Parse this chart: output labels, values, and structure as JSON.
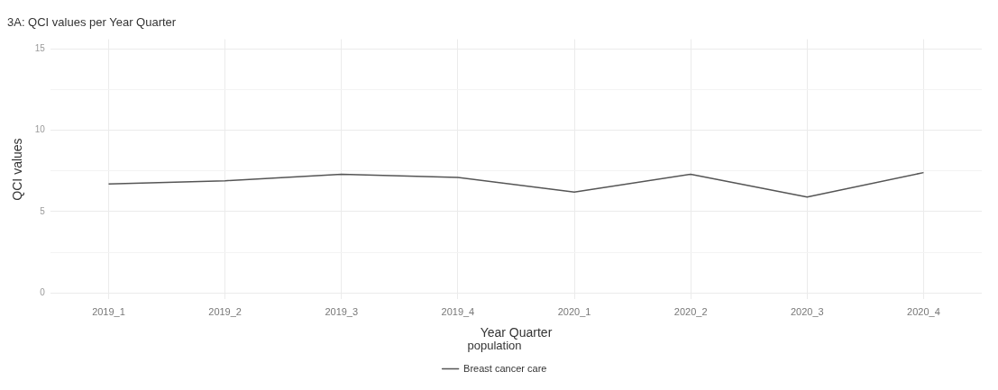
{
  "chart_data": {
    "type": "line",
    "title": "3A: QCI values per Year Quarter",
    "xlabel": "Year Quarter",
    "ylabel": "QCI values",
    "legend_title": "population",
    "categories": [
      "2019_1",
      "2019_2",
      "2019_3",
      "2019_4",
      "2020_1",
      "2020_2",
      "2020_3",
      "2020_4"
    ],
    "series": [
      {
        "name": "Breast cancer care",
        "color": "#555555",
        "values": [
          6.7,
          6.9,
          7.3,
          7.1,
          6.2,
          7.3,
          5.9,
          7.4
        ]
      }
    ],
    "ylim": [
      -0.4,
      15.6
    ],
    "yticks": [
      0,
      {
        "value": 2.5,
        "label": null
      },
      5,
      {
        "value": 7.5,
        "label": null
      },
      10,
      {
        "value": 12.5,
        "label": null
      },
      15
    ],
    "grid": true,
    "legend": "bottom",
    "marker": "none",
    "line_style": "solid"
  }
}
